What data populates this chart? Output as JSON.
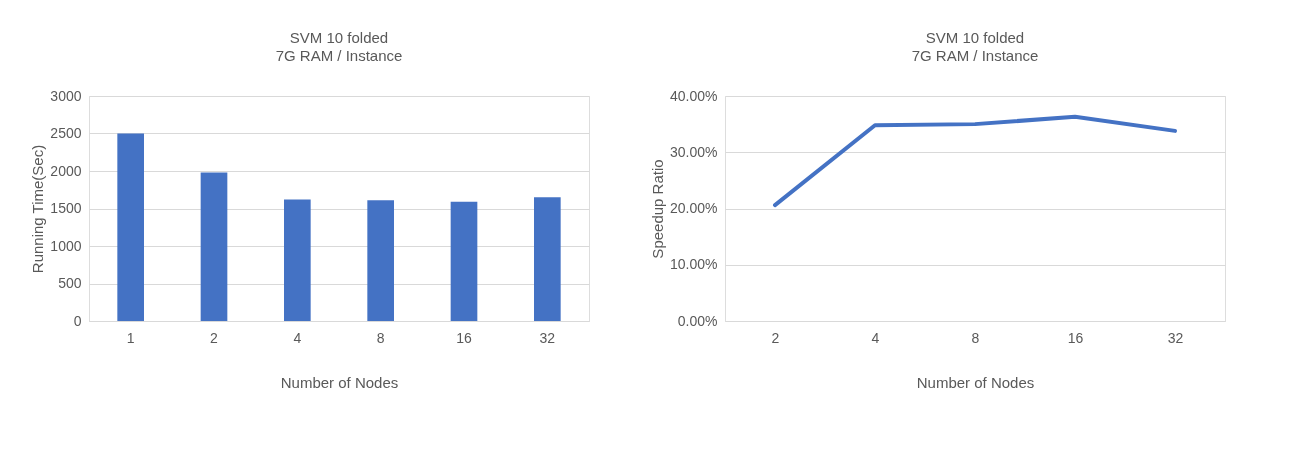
{
  "chart_data": [
    {
      "type": "bar",
      "title": "SVM 10 folded",
      "subtitle": "7G RAM / Instance",
      "xlabel": "Number of Nodes",
      "ylabel": "Running Time(Sec)",
      "categories": [
        "1",
        "2",
        "4",
        "8",
        "16",
        "32"
      ],
      "values": [
        2500,
        1980,
        1620,
        1610,
        1590,
        1650
      ],
      "color": "#4472c4",
      "ylim": [
        0,
        3000
      ],
      "yticks": [
        0,
        500,
        1000,
        1500,
        2000,
        2500,
        3000
      ],
      "grid": "y"
    },
    {
      "type": "line",
      "title": "SVM 10 folded",
      "subtitle": "7G RAM / Instance",
      "xlabel": "Number of Nodes",
      "ylabel": "Speedup Ratio",
      "categories": [
        "2",
        "4",
        "8",
        "16",
        "32"
      ],
      "values": [
        20.6,
        34.8,
        35.0,
        36.3,
        33.8
      ],
      "color": "#4472c4",
      "ylim": [
        0,
        40
      ],
      "yticks": [
        {
          "value": 0,
          "label": "0.00%"
        },
        {
          "value": 10,
          "label": "10.00%"
        },
        {
          "value": 20,
          "label": "20.00%"
        },
        {
          "value": 30,
          "label": "30.00%"
        },
        {
          "value": 40,
          "label": "40.00%"
        }
      ],
      "grid": "y",
      "marker": "none",
      "line_style": "solid"
    }
  ]
}
